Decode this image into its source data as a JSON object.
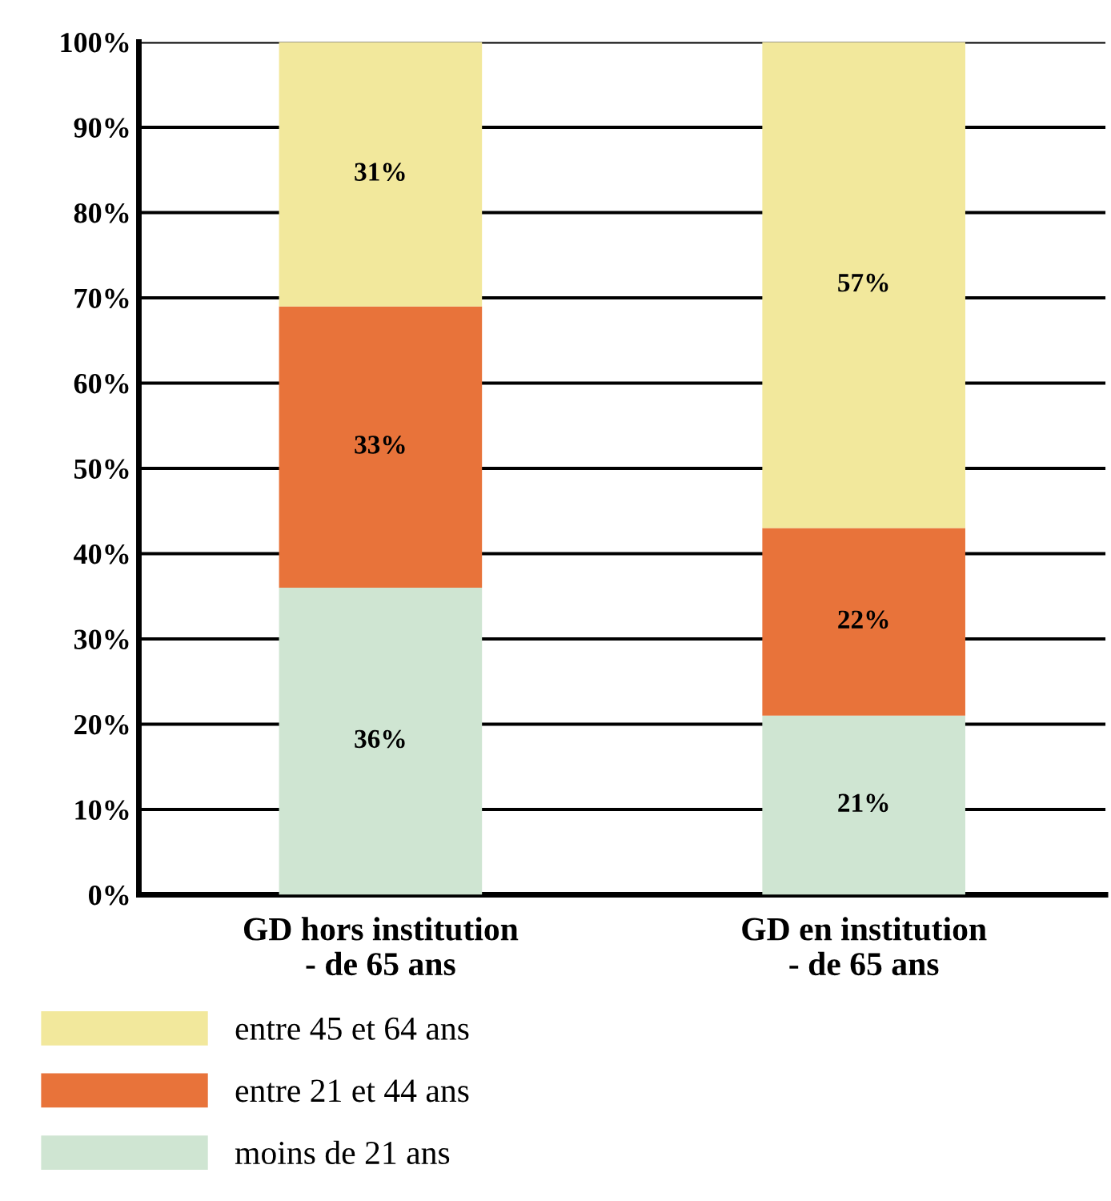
{
  "chart_data": {
    "type": "bar",
    "stacked": true,
    "categories": [
      "GD hors institution\n- de 65 ans",
      "GD en institution\n- de 65 ans"
    ],
    "series": [
      {
        "name": "moins de 21 ans",
        "color": "#cfe5d2",
        "values": [
          36,
          21
        ],
        "value_labels": [
          "36%",
          "21%"
        ]
      },
      {
        "name": "entre 21 et 44 ans",
        "color": "#e8733a",
        "values": [
          33,
          22
        ],
        "value_labels": [
          "33%",
          "22%"
        ]
      },
      {
        "name": "entre 45 et 64 ans",
        "color": "#f2e89c",
        "values": [
          31,
          57
        ],
        "value_labels": [
          "31%",
          "57%"
        ]
      }
    ],
    "ylim": [
      0,
      100
    ],
    "yticks": [
      {
        "value": 0,
        "label": "0%"
      },
      {
        "value": 10,
        "label": "10%"
      },
      {
        "value": 20,
        "label": "20%"
      },
      {
        "value": 30,
        "label": "30%"
      },
      {
        "value": 40,
        "label": "40%"
      },
      {
        "value": 50,
        "label": "50%"
      },
      {
        "value": 60,
        "label": "60%"
      },
      {
        "value": 70,
        "label": "70%"
      },
      {
        "value": 80,
        "label": "80%"
      },
      {
        "value": 90,
        "label": "90%"
      },
      {
        "value": 100,
        "label": "100%"
      }
    ],
    "grid": "y",
    "legend": "bottom left"
  }
}
